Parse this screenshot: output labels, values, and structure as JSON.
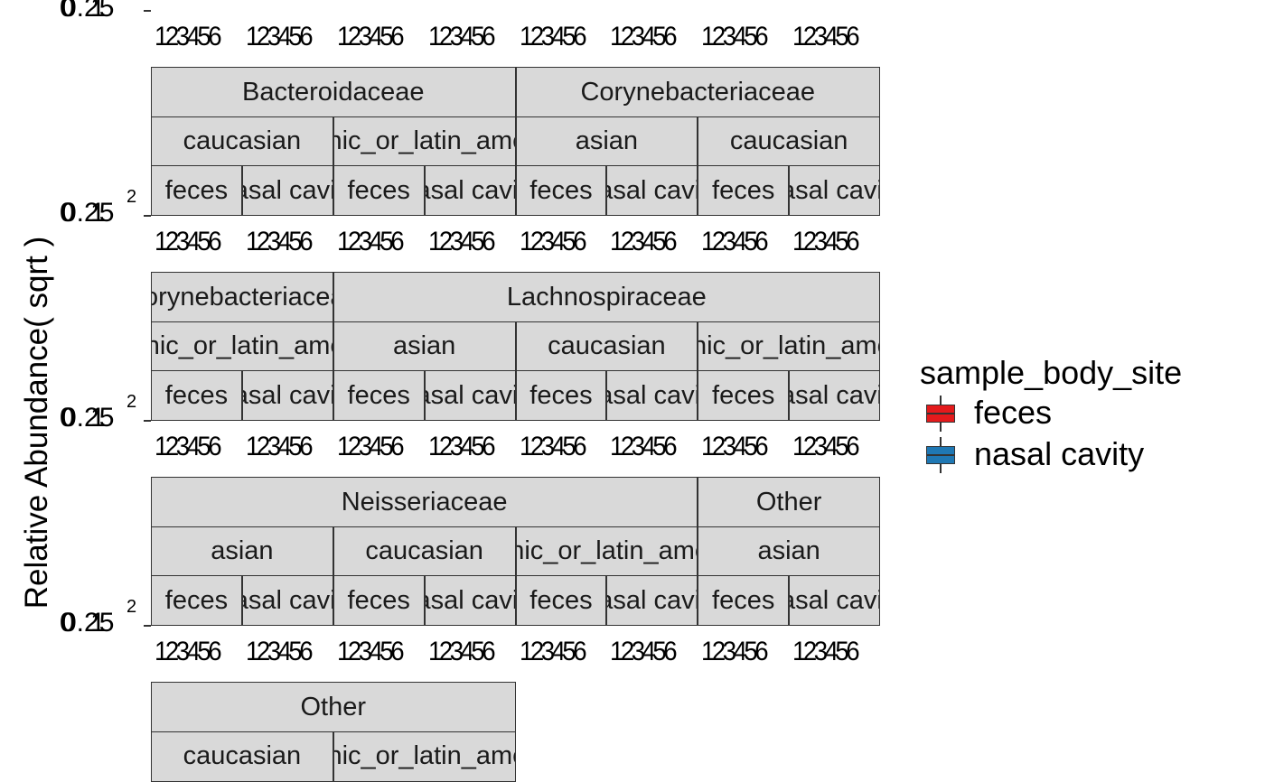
{
  "chart_data": {
    "type": "box",
    "ylabel": "Relative Abundance( sqrt )",
    "y_tick_labels": [
      "0",
      "0.25",
      "1",
      "2"
    ],
    "x_tick_labels": [
      "1",
      "2",
      "3",
      "4",
      "5",
      "6"
    ],
    "x_tick_text": "123456",
    "legend": {
      "title": "sample_body_site",
      "placement": "right",
      "items": [
        {
          "label": "feces",
          "color": "#e41a1c"
        },
        {
          "label": "nasal cavity",
          "color": "#1f78b4"
        }
      ]
    },
    "facet_rows": [
      {
        "families": [],
        "ethnicities": [],
        "body_sites": [],
        "x_tick_groups": [
          "123456",
          "123456",
          "123456",
          "123456",
          "123456",
          "123456",
          "123456",
          "123456"
        ]
      },
      {
        "families": [
          "Bacteroidaceae",
          "Corynebacteriaceae"
        ],
        "ethnicities": [
          "caucasian",
          "hispanic_or_latin_american",
          "asian",
          "caucasian"
        ],
        "body_sites": [
          "feces",
          "nasal cavity",
          "feces",
          "nasal cavity",
          "feces",
          "nasal cavity",
          "feces",
          "nasal cavity"
        ],
        "x_tick_groups": [
          "123456",
          "123456",
          "123456",
          "123456",
          "123456",
          "123456",
          "123456",
          "123456"
        ]
      },
      {
        "families": [
          "Corynebacteriaceae",
          "Lachnospiraceae"
        ],
        "ethnicities": [
          "hispanic_or_latin_american",
          "asian",
          "caucasian",
          "hispanic_or_latin_american"
        ],
        "body_sites": [
          "feces",
          "nasal cavity",
          "feces",
          "nasal cavity",
          "feces",
          "nasal cavity",
          "feces",
          "nasal cavity"
        ],
        "x_tick_groups": [
          "123456",
          "123456",
          "123456",
          "123456",
          "123456",
          "123456",
          "123456",
          "123456"
        ]
      },
      {
        "families": [
          "Neisseriaceae",
          "Other"
        ],
        "ethnicities": [
          "asian",
          "caucasian",
          "hispanic_or_latin_american",
          "asian"
        ],
        "body_sites": [
          "feces",
          "nasal cavity",
          "feces",
          "nasal cavity",
          "feces",
          "nasal cavity",
          "feces",
          "nasal cavity"
        ],
        "x_tick_groups": [
          "123456",
          "123456",
          "123456",
          "123456",
          "123456",
          "123456",
          "123456",
          "123456"
        ]
      },
      {
        "families": [
          "Other"
        ],
        "ethnicities": [
          "caucasian",
          "hispanic_or_latin_american"
        ],
        "body_sites": [],
        "x_tick_groups": []
      }
    ]
  }
}
